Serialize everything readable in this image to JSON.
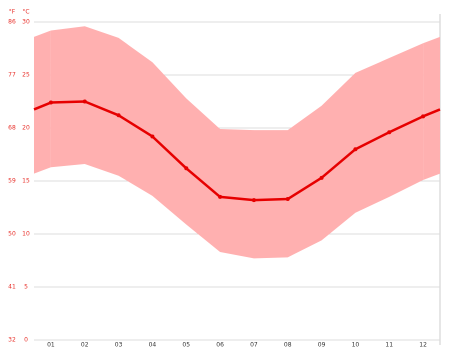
{
  "chart_data": {
    "type": "line",
    "y_label": "°C",
    "y2_label": "°F",
    "categories": [
      "01",
      "02",
      "03",
      "04",
      "05",
      "06",
      "07",
      "08",
      "09",
      "10",
      "11",
      "12"
    ],
    "mean": {
      "color": "#e60000",
      "values": [
        22.4,
        22.5,
        21.2,
        19.2,
        16.2,
        13.5,
        13.2,
        13.3,
        15.3,
        18.0,
        19.6,
        21.1
      ]
    },
    "band": {
      "color": "#ffb0b0",
      "upper": [
        29.2,
        29.6,
        28.5,
        26.2,
        22.8,
        19.9,
        19.8,
        19.8,
        22.1,
        25.2,
        26.6,
        28.0
      ],
      "lower": [
        16.3,
        16.6,
        15.5,
        13.6,
        10.9,
        8.3,
        7.7,
        7.8,
        9.4,
        12.0,
        13.5,
        15.1
      ]
    },
    "ylim": [
      0,
      30
    ],
    "yticks": [
      0,
      5,
      10,
      15,
      20,
      25,
      30
    ],
    "y2lim": [
      32,
      86
    ],
    "y2ticks": [
      32,
      41,
      50,
      59,
      68,
      77,
      86
    ],
    "grid": true,
    "label_color": "#e8302a"
  }
}
